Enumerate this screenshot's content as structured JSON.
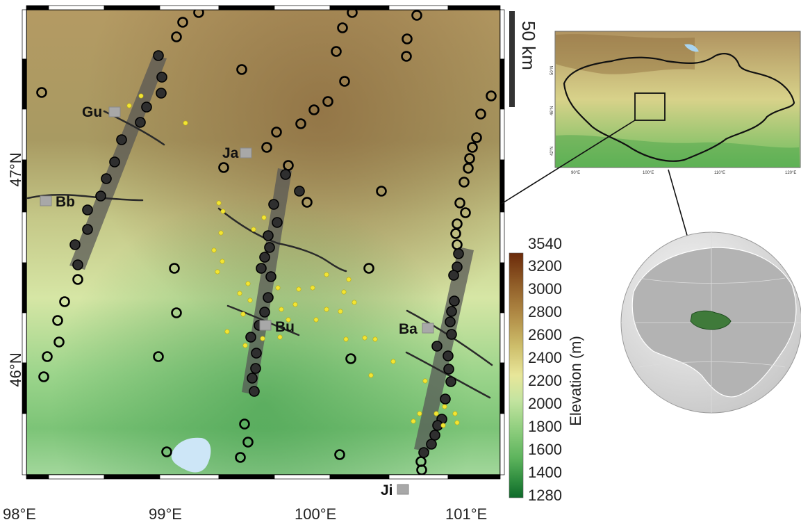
{
  "map": {
    "lon_ticks": [
      "98°E",
      "99°E",
      "100°E",
      "101°E"
    ],
    "lat_ticks": [
      "47°N",
      "46°N"
    ],
    "towns": [
      {
        "code": "Gu"
      },
      {
        "code": "Bb"
      },
      {
        "code": "Ja"
      },
      {
        "code": "Bu"
      },
      {
        "code": "Ba"
      },
      {
        "code": "Ji"
      }
    ],
    "symbols": {
      "open_circle_color": "#000000",
      "filled_circle_color": "#333333",
      "small_dot_color": "#f2e533",
      "profile_band_color": "#555555",
      "town_marker_color": "#a8a8a8",
      "lake_color": "#cde6f7"
    }
  },
  "scale_bar": {
    "label": "50 km"
  },
  "colorbar": {
    "title": "Elevation (m)",
    "ticks": [
      "3540",
      "3200",
      "3000",
      "2800",
      "2600",
      "2400",
      "2200",
      "2000",
      "1800",
      "1600",
      "1400",
      "1280"
    ],
    "stops": [
      "#6b2a0a",
      "#8e5a26",
      "#b08a45",
      "#cdbd6a",
      "#e8e69a",
      "#c4e4a0",
      "#8fce7e",
      "#5cb35c",
      "#2e8c3e",
      "#0e6a2a"
    ]
  },
  "inset_mongolia": {
    "lon_labels": [
      "90°E",
      "100°E",
      "110°E",
      "120°E"
    ],
    "lat_labels": [
      "50°N",
      "46°N",
      "42°N"
    ]
  },
  "globe": {
    "highlight_color": "#3f7a3a"
  }
}
